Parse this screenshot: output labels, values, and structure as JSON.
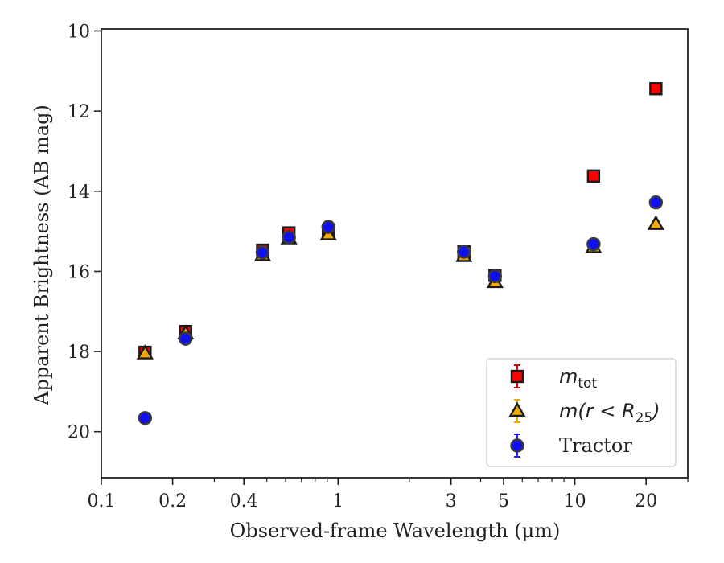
{
  "chart_data": {
    "type": "scatter",
    "title": "",
    "xlabel": "Observed-frame Wavelength (μm)",
    "ylabel": "Apparent Brightness (AB mag)",
    "x_scale": "log",
    "xlim": [
      0.1,
      30
    ],
    "ylim": [
      21.15,
      9.95
    ],
    "y_inverted": true,
    "x_ticks": [
      {
        "value": 0.1,
        "label": "0.1"
      },
      {
        "value": 0.2,
        "label": "0.2"
      },
      {
        "value": 0.4,
        "label": "0.4"
      },
      {
        "value": 1,
        "label": "1"
      },
      {
        "value": 3,
        "label": "3"
      },
      {
        "value": 5,
        "label": "5"
      },
      {
        "value": 10,
        "label": "10"
      },
      {
        "value": 20,
        "label": "20"
      }
    ],
    "y_ticks": [
      {
        "value": 10,
        "label": "10"
      },
      {
        "value": 12,
        "label": "12"
      },
      {
        "value": 14,
        "label": "14"
      },
      {
        "value": 16,
        "label": "16"
      },
      {
        "value": 18,
        "label": "18"
      },
      {
        "value": 20,
        "label": "20"
      }
    ],
    "grid": false,
    "legend_position": "lower-right",
    "series": [
      {
        "name": "m_tot",
        "legend_main": "m",
        "legend_sub": "tot",
        "marker": "square",
        "color": "#ff0000",
        "error_color": "#cc0000",
        "points": [
          {
            "x": 0.153,
            "y": 18.02
          },
          {
            "x": 0.227,
            "y": 17.5
          },
          {
            "x": 0.48,
            "y": 15.47
          },
          {
            "x": 0.62,
            "y": 15.04
          },
          {
            "x": 0.91,
            "y": 15.0
          },
          {
            "x": 3.4,
            "y": 15.51
          },
          {
            "x": 4.6,
            "y": 16.1
          },
          {
            "x": 12.0,
            "y": 13.62
          },
          {
            "x": 22.0,
            "y": 11.44
          }
        ]
      },
      {
        "name": "m(r < R_25)",
        "legend_main": "m(r < R",
        "legend_sub": "25",
        "legend_close": ")",
        "marker": "triangle",
        "color": "#f5a800",
        "error_color": "#f5a800",
        "points": [
          {
            "x": 0.153,
            "y": 18.05
          },
          {
            "x": 0.227,
            "y": 17.55
          },
          {
            "x": 0.48,
            "y": 15.6
          },
          {
            "x": 0.62,
            "y": 15.18
          },
          {
            "x": 0.91,
            "y": 15.08
          },
          {
            "x": 3.4,
            "y": 15.62
          },
          {
            "x": 4.6,
            "y": 16.27
          },
          {
            "x": 12.0,
            "y": 15.4
          },
          {
            "x": 22.0,
            "y": 14.82
          }
        ]
      },
      {
        "name": "Tractor",
        "marker": "circle",
        "color": "#1010ee",
        "error_color": "#2020ff",
        "points": [
          {
            "x": 0.153,
            "y": 19.66
          },
          {
            "x": 0.227,
            "y": 17.68
          },
          {
            "x": 0.48,
            "y": 15.53
          },
          {
            "x": 0.62,
            "y": 15.15
          },
          {
            "x": 0.91,
            "y": 14.89
          },
          {
            "x": 3.4,
            "y": 15.51
          },
          {
            "x": 4.6,
            "y": 16.12
          },
          {
            "x": 12.0,
            "y": 15.32
          },
          {
            "x": 22.0,
            "y": 14.28
          }
        ]
      }
    ]
  }
}
